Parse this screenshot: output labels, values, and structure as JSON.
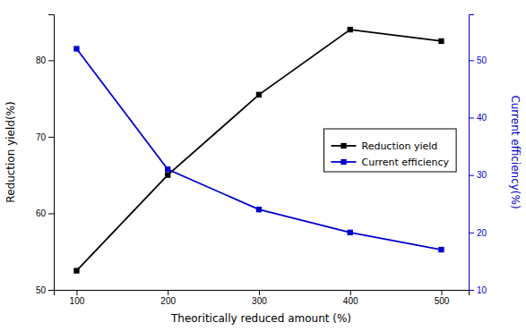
{
  "chart_data": {
    "type": "line",
    "x": [
      100,
      200,
      300,
      400,
      500
    ],
    "xlabel": "Theoritically reduced amount (%)",
    "ylabel": "Reduction yield(%)",
    "y2label": "Current efficiency(%)",
    "xlim": [
      75,
      530
    ],
    "xticks": [
      100,
      200,
      300,
      400,
      500
    ],
    "ylim": [
      50,
      86
    ],
    "yticks": [
      50,
      60,
      70,
      80
    ],
    "y2lim": [
      10,
      58
    ],
    "y2ticks": [
      10,
      20,
      30,
      40,
      50
    ],
    "grid": false,
    "legend": "right",
    "series": [
      {
        "name": "Reduction yield",
        "color": "#000000",
        "marker": "square",
        "values": [
          52.5,
          65.0,
          75.5,
          84.0,
          82.5
        ]
      },
      {
        "name": "Current efficiency",
        "color": "#0000cc",
        "marker": "square",
        "axis": "y2",
        "values": [
          52.0,
          31.0,
          24.0,
          20.0,
          17.0
        ]
      }
    ]
  }
}
